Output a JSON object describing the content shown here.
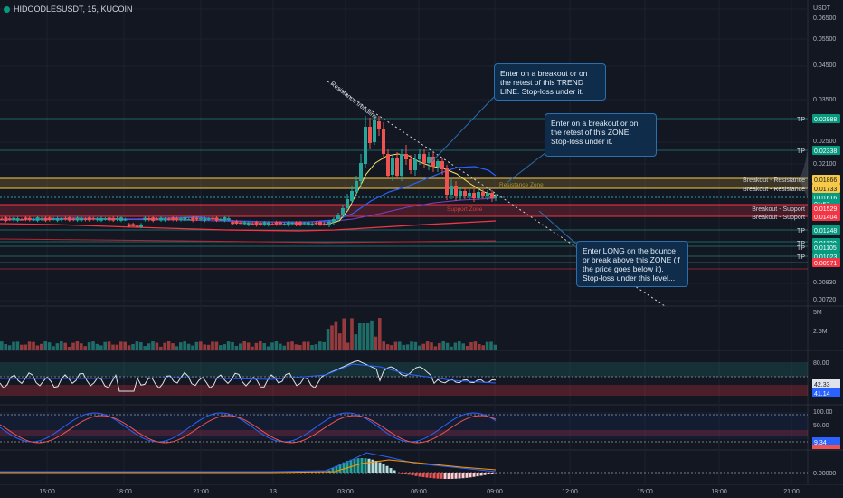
{
  "header": {
    "symbol_line": "HIDOODLESUSDT, 15, KUCOIN",
    "currency": "USDT"
  },
  "colors": {
    "background": "#131722",
    "up": "#26a69a",
    "down": "#ef5350",
    "tp": "#089981",
    "resistance": "#f7c948",
    "support": "#f23645",
    "callout": "#0f2c4a"
  },
  "price_axis": {
    "ticks": [
      "0.06500",
      "0.05500",
      "0.04500",
      "0.03500",
      "0.02500",
      "0.02100",
      "0.00830",
      "0.00720"
    ],
    "badges": [
      {
        "label": "TP",
        "value": "0.02988",
        "color": "#089981",
        "text_color": "#ffffff"
      },
      {
        "label": "TP",
        "value": "0.02338",
        "color": "#089981",
        "text_color": "#ffffff"
      },
      {
        "label": "Breakout - Resistance",
        "value": "0.01866",
        "color": "#f7c948",
        "text_color": "#131722"
      },
      {
        "label": "Breakout - Resistance",
        "value": "0.01733",
        "color": "#f7c948",
        "text_color": "#131722"
      },
      {
        "label": "",
        "value": "0.01616",
        "color": "#089981",
        "text_color": "#ffffff"
      },
      {
        "label": "",
        "value": "01:57",
        "color": "#089981",
        "text_color": "#ffffff"
      },
      {
        "label": "Breakout - Support",
        "value": "0.01529",
        "color": "#f23645",
        "text_color": "#ffffff"
      },
      {
        "label": "Breakout - Support",
        "value": "0.01404",
        "color": "#f23645",
        "text_color": "#ffffff"
      },
      {
        "label": "TP",
        "value": "0.01248",
        "color": "#089981",
        "text_color": "#ffffff"
      },
      {
        "label": "TP",
        "value": "0.01130",
        "color": "#089981",
        "text_color": "#ffffff"
      },
      {
        "label": "TP",
        "value": "0.01105",
        "color": "#089981",
        "text_color": "#ffffff"
      },
      {
        "label": "TP",
        "value": "0.01023",
        "color": "#089981",
        "text_color": "#ffffff"
      },
      {
        "label": "",
        "value": "0.00971",
        "color": "#f23645",
        "text_color": "#ffffff"
      }
    ]
  },
  "annotations": {
    "trendline_label": "Resistance trendline",
    "resistance_zone_label": "Resistance Zone",
    "support_zone_label": "Support Zone"
  },
  "callouts": [
    "Enter on a breakout or on the retest of this TREND LINE. Stop-loss under it.",
    "Enter on a breakout or on the retest of this ZONE. Stop-loss under it.",
    "Enter LONG on the bounce or break above this ZONE (if the price goes below it). Stop-loss under this level..."
  ],
  "volume_axis": [
    "5M",
    "2.5M"
  ],
  "rsi_axis": {
    "tick": "80.00",
    "value1": "42.33",
    "value2": "41.14"
  },
  "stoch_axis": {
    "tick1": "100.00",
    "tick2": "50.00",
    "value": "9.34"
  },
  "macd_axis": {
    "tick": "0.00000"
  },
  "time_axis": [
    "15:00",
    "18:00",
    "21:00",
    "13",
    "03:00",
    "06:00",
    "09:00",
    "12:00",
    "15:00",
    "18:00",
    "21:00"
  ]
}
